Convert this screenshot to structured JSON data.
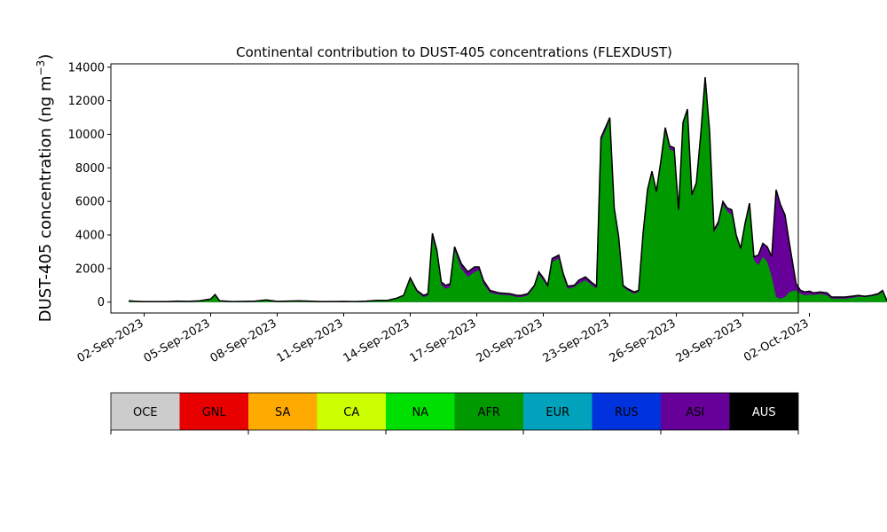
{
  "chart_data": {
    "type": "area",
    "title": "Continental contribution to DUST-405 concentrations (FLEXDUST)",
    "ylabel": "DUST-405 concentration (ng m",
    "ylabel_exp": "−3",
    "ylabel_close": ")",
    "ylim": [
      -650,
      14200
    ],
    "yticks": [
      0,
      2000,
      4000,
      6000,
      8000,
      10000,
      12000,
      14000
    ],
    "xlim_days": [
      0.5,
      31.5
    ],
    "xtick_days": [
      2,
      5,
      8,
      11,
      14,
      17,
      20,
      23,
      26,
      29,
      32
    ],
    "xtick_labels": [
      "02-Sep-2023",
      "05-Sep-2023",
      "08-Sep-2023",
      "11-Sep-2023",
      "14-Sep-2023",
      "17-Sep-2023",
      "20-Sep-2023",
      "23-Sep-2023",
      "26-Sep-2023",
      "29-Sep-2023",
      "02-Oct-2023"
    ],
    "legend_placement": "bottom",
    "legend": [
      {
        "name": "OCE",
        "color": "#cccccc",
        "text_color": "#000000"
      },
      {
        "name": "GNL",
        "color": "#e80000",
        "text_color": "#000000"
      },
      {
        "name": "SA",
        "color": "#ffaa00",
        "text_color": "#000000"
      },
      {
        "name": "CA",
        "color": "#ccff00",
        "text_color": "#000000"
      },
      {
        "name": "NA",
        "color": "#00e000",
        "text_color": "#000000"
      },
      {
        "name": "AFR",
        "color": "#009900",
        "text_color": "#000000"
      },
      {
        "name": "EUR",
        "color": "#00a3bb",
        "text_color": "#000000"
      },
      {
        "name": "RUS",
        "color": "#0033dd",
        "text_color": "#000000"
      },
      {
        "name": "ASI",
        "color": "#660099",
        "text_color": "#000000"
      },
      {
        "name": "AUS",
        "color": "#000000",
        "text_color": "#ffffff"
      }
    ],
    "series": [
      {
        "name": "AFR",
        "color": "#009900",
        "points": [
          [
            1.3,
            50
          ],
          [
            1.6,
            30
          ],
          [
            2.0,
            10
          ],
          [
            3.0,
            10
          ],
          [
            3.5,
            40
          ],
          [
            4.0,
            20
          ],
          [
            4.5,
            60
          ],
          [
            5.0,
            150
          ],
          [
            5.2,
            400
          ],
          [
            5.4,
            50
          ],
          [
            6.0,
            10
          ],
          [
            7.0,
            40
          ],
          [
            7.5,
            100
          ],
          [
            8.0,
            20
          ],
          [
            9.0,
            60
          ],
          [
            10.0,
            10
          ],
          [
            11.0,
            20
          ],
          [
            11.5,
            10
          ],
          [
            12.0,
            40
          ],
          [
            12.5,
            80
          ],
          [
            13.0,
            80
          ],
          [
            13.4,
            200
          ],
          [
            13.7,
            350
          ],
          [
            14.0,
            1350
          ],
          [
            14.3,
            600
          ],
          [
            14.6,
            300
          ],
          [
            14.8,
            380
          ],
          [
            15.0,
            3800
          ],
          [
            15.2,
            2900
          ],
          [
            15.4,
            1000
          ],
          [
            15.6,
            800
          ],
          [
            15.8,
            900
          ],
          [
            16.0,
            3100
          ],
          [
            16.3,
            2000
          ],
          [
            16.6,
            1500
          ],
          [
            16.9,
            1800
          ],
          [
            17.1,
            1900
          ],
          [
            17.3,
            1100
          ],
          [
            17.6,
            550
          ],
          [
            18.0,
            450
          ],
          [
            18.5,
            400
          ],
          [
            18.8,
            300
          ],
          [
            19.0,
            300
          ],
          [
            19.3,
            400
          ],
          [
            19.6,
            900
          ],
          [
            19.8,
            1650
          ],
          [
            20.0,
            1300
          ],
          [
            20.2,
            900
          ],
          [
            20.4,
            2400
          ],
          [
            20.7,
            2600
          ],
          [
            20.9,
            1500
          ],
          [
            21.1,
            800
          ],
          [
            21.4,
            900
          ],
          [
            21.6,
            1100
          ],
          [
            21.9,
            1300
          ],
          [
            22.2,
            1000
          ],
          [
            22.4,
            800
          ],
          [
            22.6,
            9600
          ],
          [
            22.8,
            10200
          ],
          [
            23.0,
            10900
          ],
          [
            23.2,
            5500
          ],
          [
            23.4,
            3800
          ],
          [
            23.6,
            900
          ],
          [
            23.8,
            700
          ],
          [
            24.1,
            500
          ],
          [
            24.3,
            600
          ],
          [
            24.5,
            4000
          ],
          [
            24.7,
            6500
          ],
          [
            24.9,
            7700
          ],
          [
            25.1,
            6500
          ],
          [
            25.3,
            8200
          ],
          [
            25.5,
            10200
          ],
          [
            25.7,
            9100
          ],
          [
            25.9,
            9000
          ],
          [
            26.1,
            5400
          ],
          [
            26.3,
            10500
          ],
          [
            26.5,
            11400
          ],
          [
            26.7,
            6300
          ],
          [
            26.9,
            7000
          ],
          [
            27.1,
            9800
          ],
          [
            27.3,
            13300
          ],
          [
            27.5,
            10000
          ],
          [
            27.7,
            4200
          ],
          [
            27.9,
            4600
          ],
          [
            28.1,
            5800
          ],
          [
            28.3,
            5400
          ],
          [
            28.5,
            5200
          ],
          [
            28.7,
            3800
          ],
          [
            28.9,
            3100
          ],
          [
            29.1,
            4500
          ],
          [
            29.3,
            5700
          ],
          [
            29.5,
            2500
          ],
          [
            29.7,
            2200
          ],
          [
            29.9,
            2700
          ],
          [
            30.1,
            2400
          ],
          [
            30.3,
            1500
          ],
          [
            30.5,
            300
          ],
          [
            30.7,
            200
          ],
          [
            30.9,
            300
          ],
          [
            31.1,
            600
          ],
          [
            31.4,
            700
          ],
          [
            31.6,
            500
          ],
          [
            31.8,
            400
          ],
          [
            32.0,
            450
          ],
          [
            32.2,
            420
          ],
          [
            32.5,
            480
          ],
          [
            32.8,
            400
          ],
          [
            33.0,
            200
          ],
          [
            33.3,
            200
          ],
          [
            33.6,
            200
          ],
          [
            33.9,
            250
          ],
          [
            34.2,
            320
          ],
          [
            34.5,
            300
          ],
          [
            34.8,
            350
          ],
          [
            35.1,
            420
          ],
          [
            35.3,
            600
          ],
          [
            35.5,
            40
          ]
        ]
      },
      {
        "name": "ASI",
        "color": "#660099",
        "points": [
          [
            1.3,
            80
          ],
          [
            1.6,
            50
          ],
          [
            2.0,
            30
          ],
          [
            3.0,
            30
          ],
          [
            3.5,
            60
          ],
          [
            4.0,
            40
          ],
          [
            4.5,
            80
          ],
          [
            5.0,
            180
          ],
          [
            5.2,
            450
          ],
          [
            5.4,
            80
          ],
          [
            6.0,
            30
          ],
          [
            7.0,
            60
          ],
          [
            7.5,
            130
          ],
          [
            8.0,
            40
          ],
          [
            9.0,
            80
          ],
          [
            10.0,
            30
          ],
          [
            11.0,
            40
          ],
          [
            11.5,
            30
          ],
          [
            12.0,
            60
          ],
          [
            12.5,
            100
          ],
          [
            13.0,
            110
          ],
          [
            13.4,
            240
          ],
          [
            13.7,
            400
          ],
          [
            14.0,
            1450
          ],
          [
            14.3,
            700
          ],
          [
            14.6,
            400
          ],
          [
            14.8,
            500
          ],
          [
            15.0,
            4100
          ],
          [
            15.2,
            3100
          ],
          [
            15.4,
            1200
          ],
          [
            15.6,
            1000
          ],
          [
            15.8,
            1100
          ],
          [
            16.0,
            3300
          ],
          [
            16.3,
            2300
          ],
          [
            16.6,
            1800
          ],
          [
            16.9,
            2100
          ],
          [
            17.1,
            2100
          ],
          [
            17.3,
            1300
          ],
          [
            17.6,
            700
          ],
          [
            18.0,
            550
          ],
          [
            18.5,
            500
          ],
          [
            18.8,
            400
          ],
          [
            19.0,
            400
          ],
          [
            19.3,
            500
          ],
          [
            19.6,
            1000
          ],
          [
            19.8,
            1800
          ],
          [
            20.0,
            1450
          ],
          [
            20.2,
            1000
          ],
          [
            20.4,
            2600
          ],
          [
            20.7,
            2800
          ],
          [
            20.9,
            1700
          ],
          [
            21.1,
            950
          ],
          [
            21.4,
            1000
          ],
          [
            21.6,
            1300
          ],
          [
            21.9,
            1500
          ],
          [
            22.2,
            1150
          ],
          [
            22.4,
            950
          ],
          [
            22.6,
            9800
          ],
          [
            22.8,
            10400
          ],
          [
            23.0,
            11000
          ],
          [
            23.2,
            5600
          ],
          [
            23.4,
            3900
          ],
          [
            23.6,
            1000
          ],
          [
            23.8,
            800
          ],
          [
            24.1,
            600
          ],
          [
            24.3,
            700
          ],
          [
            24.5,
            4100
          ],
          [
            24.7,
            6700
          ],
          [
            24.9,
            7800
          ],
          [
            25.1,
            6600
          ],
          [
            25.3,
            8400
          ],
          [
            25.5,
            10400
          ],
          [
            25.7,
            9300
          ],
          [
            25.9,
            9200
          ],
          [
            26.1,
            5500
          ],
          [
            26.3,
            10700
          ],
          [
            26.5,
            11500
          ],
          [
            26.7,
            6400
          ],
          [
            26.9,
            7100
          ],
          [
            27.1,
            10000
          ],
          [
            27.3,
            13400
          ],
          [
            27.5,
            10200
          ],
          [
            27.7,
            4300
          ],
          [
            27.9,
            4800
          ],
          [
            28.1,
            6000
          ],
          [
            28.3,
            5600
          ],
          [
            28.5,
            5500
          ],
          [
            28.7,
            4000
          ],
          [
            28.9,
            3200
          ],
          [
            29.1,
            4700
          ],
          [
            29.3,
            5900
          ],
          [
            29.5,
            2700
          ],
          [
            29.7,
            2800
          ],
          [
            29.9,
            3500
          ],
          [
            30.1,
            3300
          ],
          [
            30.3,
            2700
          ],
          [
            30.5,
            6700
          ],
          [
            30.7,
            5800
          ],
          [
            30.9,
            5200
          ],
          [
            31.1,
            3500
          ],
          [
            31.4,
            1100
          ],
          [
            31.6,
            700
          ],
          [
            31.8,
            600
          ],
          [
            32.0,
            650
          ],
          [
            32.2,
            550
          ],
          [
            32.5,
            600
          ],
          [
            32.8,
            550
          ],
          [
            33.0,
            300
          ],
          [
            33.3,
            300
          ],
          [
            33.6,
            300
          ],
          [
            33.9,
            350
          ],
          [
            34.2,
            400
          ],
          [
            34.5,
            350
          ],
          [
            34.8,
            400
          ],
          [
            35.1,
            500
          ],
          [
            35.3,
            700
          ],
          [
            35.5,
            80
          ]
        ]
      }
    ]
  }
}
